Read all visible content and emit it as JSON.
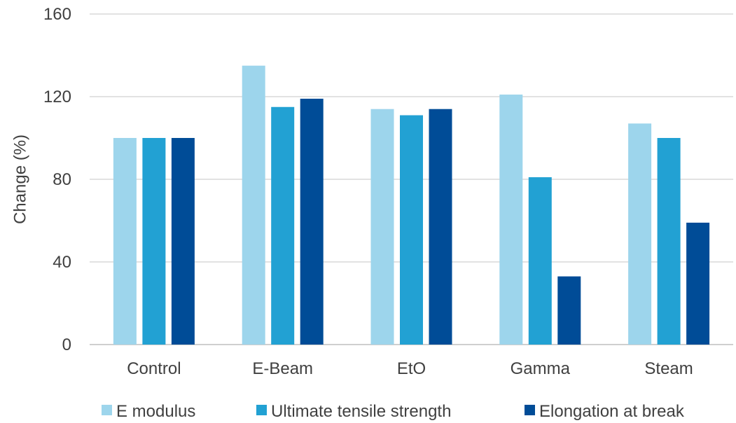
{
  "chart_data": {
    "type": "bar",
    "categories": [
      "Control",
      "E-Beam",
      "EtO",
      "Gamma",
      "Steam"
    ],
    "series": [
      {
        "name": "E modulus",
        "color": "#9dd5ec",
        "values": [
          100,
          135,
          114,
          121,
          107
        ]
      },
      {
        "name": "Ultimate tensile strength",
        "color": "#22a1d3",
        "values": [
          100,
          115,
          111,
          81,
          100
        ]
      },
      {
        "name": "Elongation at break",
        "color": "#004c97",
        "values": [
          100,
          119,
          114,
          33,
          59
        ]
      }
    ],
    "ylabel": "Change (%)",
    "ylim": [
      0,
      160
    ],
    "yticks": [
      0,
      40,
      80,
      120,
      160
    ],
    "grid": true,
    "legend_position": "bottom",
    "colors": {
      "gridline": "#d9d9d9",
      "text": "#404040"
    }
  }
}
